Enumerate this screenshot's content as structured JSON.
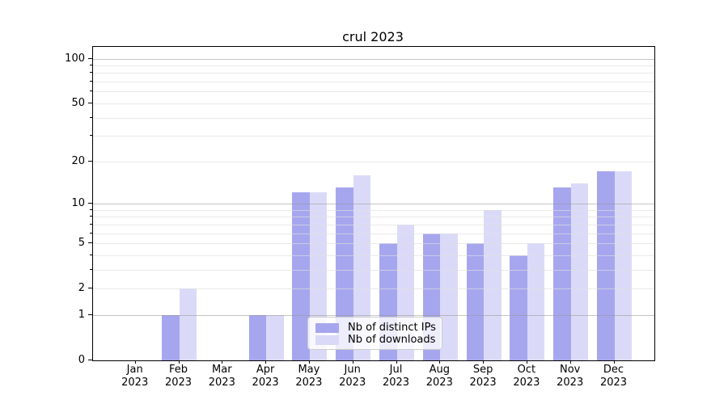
{
  "chart_data": {
    "type": "bar",
    "title": "crul 2023",
    "categories": [
      "Jan",
      "Feb",
      "Mar",
      "Apr",
      "May",
      "Jun",
      "Jul",
      "Aug",
      "Sep",
      "Oct",
      "Nov",
      "Dec"
    ],
    "year_label": "2023",
    "series": [
      {
        "name": "Nb of distinct IPs",
        "color": "#a6a6ef",
        "values": [
          0,
          1,
          0,
          1,
          12,
          13,
          5,
          6,
          5,
          4,
          13,
          17
        ]
      },
      {
        "name": "Nb of downloads",
        "color": "#dadaf8",
        "values": [
          0,
          2,
          0,
          1,
          12,
          16,
          7,
          6,
          9,
          5,
          14,
          17
        ]
      }
    ],
    "yscale": "log1p",
    "ylim": [
      0,
      120
    ],
    "y_tick_values": [
      0,
      1,
      2,
      5,
      10,
      20,
      50,
      100
    ],
    "y_tick_labels": [
      "0",
      "1",
      "2",
      "5",
      "10",
      "20",
      "50",
      "100"
    ],
    "y_major_grid_values": [
      1,
      10,
      100
    ],
    "y_minor_grid_values": [
      2,
      3,
      4,
      5,
      6,
      7,
      8,
      9,
      20,
      30,
      40,
      50,
      60,
      70,
      80,
      90
    ],
    "grid": true,
    "legend_position": "lower center",
    "colors": {
      "background": "#ffffff",
      "axis_frame": "#000000",
      "major_grid": "rgba(150,150,150,0.55)",
      "minor_grid": "rgba(222,222,222,0.65)",
      "text": "#000000",
      "legend_border": "#cccccc",
      "legend_bg": "rgba(255,255,255,0.8)"
    }
  }
}
